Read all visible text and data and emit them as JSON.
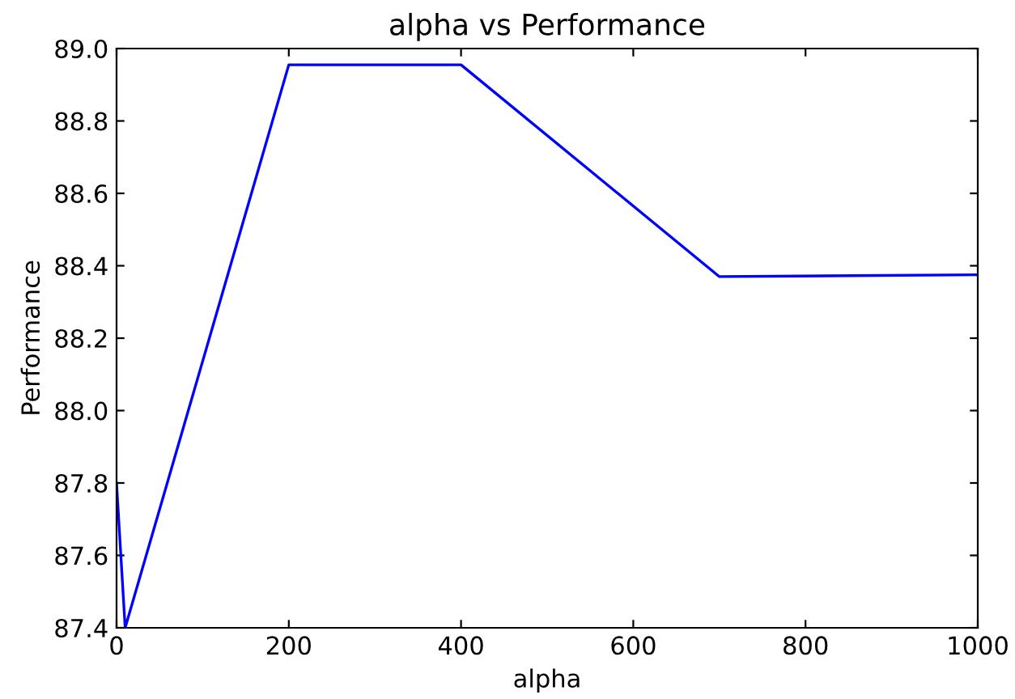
{
  "chart_data": {
    "type": "line",
    "title": "alpha vs Performance",
    "xlabel": "alpha",
    "ylabel": "Performance",
    "x": [
      0,
      10,
      200,
      400,
      700,
      1000
    ],
    "series": [
      {
        "color": "#0000ff",
        "values": [
          87.8,
          87.4,
          88.955,
          88.955,
          88.37,
          88.375
        ]
      }
    ],
    "xlim": [
      0,
      1000
    ],
    "xticks": [
      0,
      200,
      400,
      600,
      800,
      1000
    ],
    "ylim": [
      87.4,
      89.0
    ],
    "yticks": [
      87.4,
      87.6,
      87.8,
      {
        "value": 88,
        "label": "88.0"
      },
      88.2,
      88.4,
      88.6,
      88.8,
      {
        "value": 89,
        "label": "89.0"
      }
    ],
    "grid": false,
    "legend": false,
    "marker": "none",
    "line_style": "solid"
  }
}
